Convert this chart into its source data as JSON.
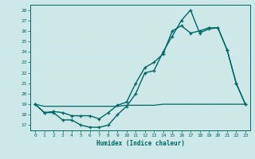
{
  "xlabel": "Humidex (Indice chaleur)",
  "background_color": "#cce8e8",
  "grid_color": "#b8d8d8",
  "line_color": "#006666",
  "xlim": [
    -0.5,
    23.5
  ],
  "ylim": [
    16.5,
    28.5
  ],
  "yticks": [
    17,
    18,
    19,
    20,
    21,
    22,
    23,
    24,
    25,
    26,
    27,
    28
  ],
  "xticks": [
    0,
    1,
    2,
    3,
    4,
    5,
    6,
    7,
    8,
    9,
    10,
    11,
    12,
    13,
    14,
    15,
    16,
    17,
    18,
    19,
    20,
    21,
    22,
    23
  ],
  "line1_x": [
    0,
    1,
    2,
    3,
    4,
    5,
    6,
    7,
    8,
    9,
    10,
    11,
    12,
    13,
    14,
    15,
    16,
    17,
    18,
    19,
    20,
    21,
    22,
    23
  ],
  "line1_y": [
    19.0,
    18.2,
    18.2,
    17.5,
    17.5,
    17.0,
    16.8,
    16.8,
    17.0,
    18.0,
    18.8,
    20.0,
    22.0,
    22.2,
    24.0,
    25.5,
    27.0,
    28.0,
    25.8,
    26.2,
    26.3,
    24.2,
    21.0,
    19.0
  ],
  "line2_x": [
    0,
    1,
    2,
    3,
    4,
    5,
    6,
    7,
    8,
    9,
    10,
    11,
    12,
    13,
    14,
    15,
    16,
    17,
    18,
    19,
    20,
    21,
    22,
    23
  ],
  "line2_y": [
    19.0,
    18.2,
    18.3,
    18.2,
    17.9,
    17.9,
    17.9,
    17.6,
    18.2,
    18.9,
    19.2,
    21.0,
    22.5,
    23.0,
    23.8,
    26.0,
    26.5,
    25.8,
    26.0,
    26.3,
    26.3,
    24.2,
    21.0,
    19.0
  ],
  "line3_x": [
    0,
    1,
    2,
    3,
    4,
    5,
    6,
    7,
    8,
    9,
    10,
    11,
    12,
    13,
    14,
    15,
    16,
    17,
    18,
    19,
    20,
    21,
    22,
    23
  ],
  "line3_y": [
    19.0,
    18.8,
    18.8,
    18.8,
    18.8,
    18.8,
    18.8,
    18.8,
    18.8,
    18.8,
    18.9,
    18.9,
    18.9,
    18.9,
    19.0,
    19.0,
    19.0,
    19.0,
    19.0,
    19.0,
    19.0,
    19.0,
    19.0,
    19.0
  ]
}
